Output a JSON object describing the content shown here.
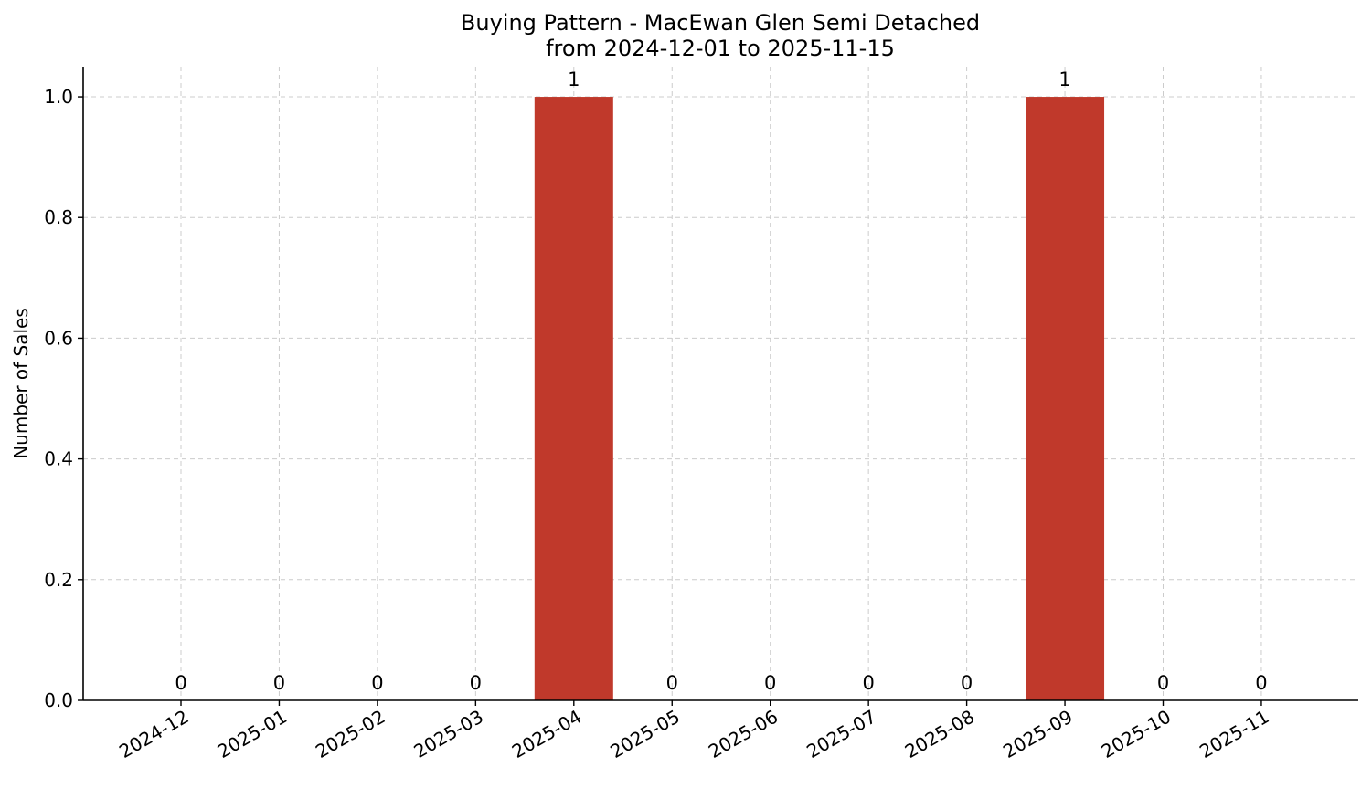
{
  "chart_data": {
    "type": "bar",
    "title": "Buying Pattern - MacEwan Glen Semi Detached",
    "subtitle": "from 2024-12-01 to 2025-11-15",
    "xlabel": "",
    "ylabel": "Number of Sales",
    "categories": [
      "2024-12",
      "2025-01",
      "2025-02",
      "2025-03",
      "2025-04",
      "2025-05",
      "2025-06",
      "2025-07",
      "2025-08",
      "2025-09",
      "2025-10",
      "2025-11"
    ],
    "values": [
      0,
      0,
      0,
      0,
      1,
      0,
      0,
      0,
      0,
      1,
      0,
      0
    ],
    "data_labels": [
      "0",
      "0",
      "0",
      "0",
      "1",
      "0",
      "0",
      "0",
      "0",
      "1",
      "0",
      "0"
    ],
    "yticks": [
      "0.0",
      "0.2",
      "0.4",
      "0.6",
      "0.8",
      "1.0"
    ],
    "ylim": [
      0,
      1.05
    ],
    "grid": true,
    "bar_color": "#c0392b"
  }
}
